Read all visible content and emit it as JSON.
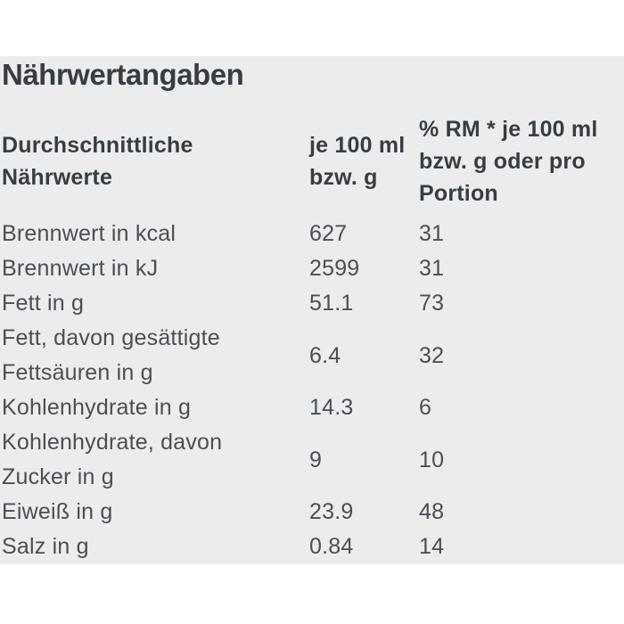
{
  "title": "Nährwertangaben",
  "colors": {
    "panel_bg": "#ececec",
    "heading_text": "#373d43",
    "body_text": "#4a4f55"
  },
  "table": {
    "headers": {
      "col1": "Durchschnittliche Nährwerte",
      "col2": "je 100 ml bzw. g",
      "col3": "% RM * je 100 ml bzw. g oder pro Portion"
    },
    "rows": [
      {
        "label": "Brennwert in kcal",
        "per100": "627",
        "rm": "31"
      },
      {
        "label": "Brennwert in kJ",
        "per100": "2599",
        "rm": "31"
      },
      {
        "label": "Fett in g",
        "per100": "51.1",
        "rm": "73"
      },
      {
        "label": "Fett, davon gesättigte Fettsäuren in g",
        "per100": "6.4",
        "rm": "32"
      },
      {
        "label": "Kohlenhydrate in g",
        "per100": "14.3",
        "rm": "6"
      },
      {
        "label": "Kohlenhydrate, davon Zucker in g",
        "per100": "9",
        "rm": "10"
      },
      {
        "label": "Eiweiß in g",
        "per100": "23.9",
        "rm": "48"
      },
      {
        "label": "Salz in g",
        "per100": "0.84",
        "rm": "14"
      }
    ]
  }
}
